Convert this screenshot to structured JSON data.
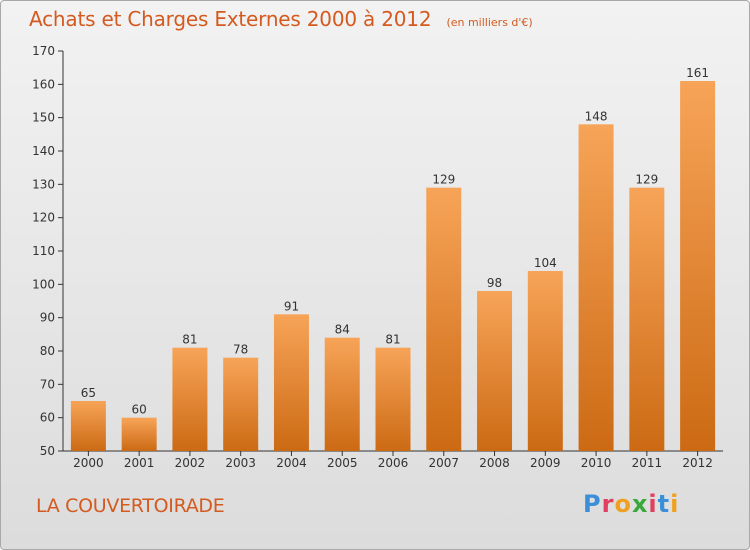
{
  "header": {
    "title": "Achats et Charges Externes 2000 à 2012",
    "unit": "(en milliers d'€)"
  },
  "footer": {
    "commune": "LA COUVERTOIRADE",
    "brand_letters": [
      "P",
      "r",
      "o",
      "x",
      "i",
      "t",
      "i"
    ],
    "brand_colors": [
      "#3a8fd8",
      "#e04060",
      "#f0a020",
      "#3aa83a",
      "#e04060",
      "#3a8fd8",
      "#f0a020"
    ]
  },
  "colors": {
    "bar_top": "#f7a458",
    "bar_bottom": "#cc6a14",
    "axis": "#333333",
    "text": "#333333",
    "accent": "#d45a1f"
  },
  "chart_data": {
    "type": "bar",
    "categories": [
      "2000",
      "2001",
      "2002",
      "2003",
      "2004",
      "2005",
      "2006",
      "2007",
      "2008",
      "2009",
      "2010",
      "2011",
      "2012"
    ],
    "values": [
      65,
      60,
      81,
      78,
      91,
      84,
      81,
      129,
      98,
      104,
      148,
      129,
      161
    ],
    "ylim": [
      50,
      170
    ],
    "yticks": [
      50,
      60,
      70,
      80,
      90,
      100,
      110,
      120,
      130,
      140,
      150,
      160,
      170
    ],
    "xlabel": "",
    "ylabel": "",
    "grid": false
  }
}
